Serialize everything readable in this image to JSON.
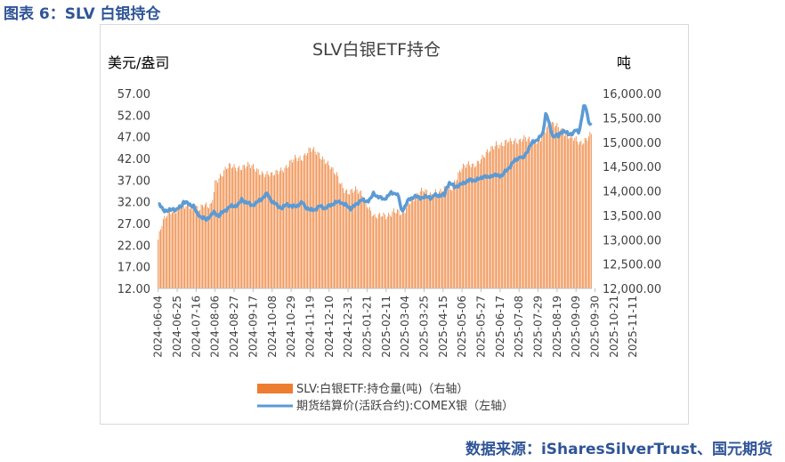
{
  "figure_title": "图表 6：SLV 白银持仓",
  "source": "数据来源：iSharesSilverTrust、国元期货",
  "chart_data": {
    "type": "bar+line",
    "title": "SLV白银ETF持仓",
    "y_left_label": "美元/盎司",
    "y_right_label": "吨",
    "y_left_range": [
      12,
      57
    ],
    "y_right_range": [
      12000,
      16000
    ],
    "y_left_ticks": [
      "57.00",
      "52.00",
      "47.00",
      "42.00",
      "37.00",
      "32.00",
      "27.00",
      "22.00",
      "17.00",
      "12.00"
    ],
    "y_right_ticks": [
      "16,000.00",
      "15,500.00",
      "15,000.00",
      "14,500.00",
      "14,000.00",
      "13,500.00",
      "13,000.00",
      "12,500.00",
      "12,000.00"
    ],
    "x_tick_labels": [
      "2024-06-04",
      "2024-06-25",
      "2024-07-16",
      "2024-08-06",
      "2024-08-27",
      "2024-09-17",
      "2024-10-08",
      "2024-10-29",
      "2024-11-19",
      "2024-12-10",
      "2024-12-31",
      "2025-01-21",
      "2025-02-11",
      "2025-03-04",
      "2025-03-25",
      "2025-04-15",
      "2025-05-06",
      "2025-05-27",
      "2025-06-17",
      "2025-07-08",
      "2025-07-29",
      "2025-08-19",
      "2025-09-09",
      "2025-09-30",
      "2025-10-21",
      "2025-11-11"
    ],
    "holdings_colors": {
      "bar": "#ed7d31",
      "line": "#5b9bd5"
    },
    "series": [
      {
        "name": "SLV:白银ETF:持仓量(吨)（右轴）",
        "axis": "right",
        "type": "bar",
        "points": [
          [
            0,
            13000
          ],
          [
            3,
            13300
          ],
          [
            6,
            13450
          ],
          [
            9,
            13600
          ],
          [
            12,
            13600
          ],
          [
            15,
            13650
          ],
          [
            18,
            13700
          ],
          [
            21,
            13650
          ],
          [
            24,
            13700
          ],
          [
            27,
            13650
          ],
          [
            30,
            13700
          ],
          [
            33,
            13650
          ],
          [
            36,
            13700
          ],
          [
            39,
            13650
          ],
          [
            42,
            13700
          ],
          [
            45,
            14200
          ],
          [
            48,
            14300
          ],
          [
            51,
            14350
          ],
          [
            54,
            14450
          ],
          [
            57,
            14500
          ],
          [
            60,
            14500
          ],
          [
            66,
            14500
          ],
          [
            72,
            14500
          ],
          [
            78,
            14450
          ],
          [
            84,
            14350
          ],
          [
            90,
            14300
          ],
          [
            96,
            14450
          ],
          [
            102,
            14500
          ],
          [
            108,
            14650
          ],
          [
            114,
            14700
          ],
          [
            117,
            14800
          ],
          [
            120,
            14850
          ],
          [
            123,
            14800
          ],
          [
            126,
            14750
          ],
          [
            129,
            14700
          ],
          [
            132,
            14650
          ],
          [
            135,
            14550
          ],
          [
            138,
            14400
          ],
          [
            141,
            14300
          ],
          [
            144,
            14150
          ],
          [
            147,
            14050
          ],
          [
            150,
            14000
          ],
          [
            153,
            14000
          ],
          [
            156,
            14000
          ],
          [
            159,
            13950
          ],
          [
            162,
            13900
          ],
          [
            165,
            13750
          ],
          [
            168,
            13600
          ],
          [
            171,
            13450
          ],
          [
            174,
            13450
          ],
          [
            177,
            13500
          ],
          [
            180,
            13500
          ],
          [
            183,
            13550
          ],
          [
            186,
            13600
          ],
          [
            189,
            13550
          ],
          [
            192,
            13500
          ],
          [
            195,
            13600
          ],
          [
            198,
            13800
          ],
          [
            201,
            13850
          ],
          [
            204,
            13900
          ],
          [
            207,
            13950
          ],
          [
            210,
            14000
          ],
          [
            213,
            13950
          ],
          [
            216,
            13950
          ],
          [
            219,
            14000
          ],
          [
            222,
            13950
          ],
          [
            225,
            14000
          ],
          [
            228,
            14050
          ],
          [
            231,
            14050
          ],
          [
            234,
            14200
          ],
          [
            237,
            14350
          ],
          [
            240,
            14450
          ],
          [
            243,
            14500
          ],
          [
            246,
            14550
          ],
          [
            249,
            14550
          ],
          [
            252,
            14600
          ],
          [
            255,
            14650
          ],
          [
            258,
            14700
          ],
          [
            261,
            14800
          ],
          [
            264,
            14900
          ],
          [
            267,
            15000
          ],
          [
            270,
            14950
          ],
          [
            273,
            14950
          ],
          [
            276,
            15000
          ],
          [
            279,
            15000
          ],
          [
            282,
            15050
          ],
          [
            285,
            15050
          ],
          [
            288,
            15100
          ],
          [
            291,
            15050
          ],
          [
            294,
            15000
          ],
          [
            297,
            15000
          ],
          [
            300,
            15050
          ],
          [
            303,
            15150
          ],
          [
            306,
            15250
          ],
          [
            309,
            15300
          ],
          [
            312,
            15350
          ],
          [
            315,
            15350
          ],
          [
            318,
            15300
          ],
          [
            321,
            15200
          ],
          [
            324,
            15100
          ],
          [
            327,
            15050
          ],
          [
            330,
            15050
          ],
          [
            333,
            15000
          ],
          [
            336,
            15050
          ],
          [
            339,
            15100
          ],
          [
            342,
            15150
          ]
        ]
      },
      {
        "name": "期货结算价(活跃合约):COMEX银（左轴）",
        "axis": "left",
        "type": "line",
        "points": [
          [
            0,
            31.5
          ],
          [
            4,
            30.2
          ],
          [
            8,
            29.8
          ],
          [
            12,
            30.5
          ],
          [
            14,
            30.0
          ],
          [
            18,
            31.0
          ],
          [
            20,
            32.0
          ],
          [
            24,
            31.5
          ],
          [
            28,
            31.0
          ],
          [
            30,
            29.5
          ],
          [
            34,
            28.5
          ],
          [
            38,
            27.8
          ],
          [
            40,
            28.5
          ],
          [
            44,
            29.5
          ],
          [
            48,
            28.8
          ],
          [
            52,
            29.8
          ],
          [
            56,
            30.8
          ],
          [
            60,
            31.0
          ],
          [
            64,
            31.5
          ],
          [
            66,
            32.5
          ],
          [
            70,
            31.8
          ],
          [
            74,
            31.2
          ],
          [
            78,
            31.8
          ],
          [
            82,
            32.8
          ],
          [
            86,
            33.8
          ],
          [
            88,
            33.0
          ],
          [
            90,
            32.0
          ],
          [
            94,
            31.2
          ],
          [
            98,
            30.5
          ],
          [
            102,
            31.5
          ],
          [
            106,
            30.8
          ],
          [
            110,
            31.2
          ],
          [
            114,
            31.8
          ],
          [
            116,
            31.0
          ],
          [
            120,
            30.0
          ],
          [
            124,
            30.3
          ],
          [
            128,
            31.0
          ],
          [
            132,
            30.5
          ],
          [
            136,
            31.2
          ],
          [
            140,
            31.8
          ],
          [
            144,
            32.0
          ],
          [
            148,
            31.2
          ],
          [
            152,
            30.5
          ],
          [
            156,
            31.2
          ],
          [
            160,
            32.5
          ],
          [
            164,
            32.0
          ],
          [
            168,
            32.8
          ],
          [
            170,
            33.8
          ],
          [
            174,
            33.2
          ],
          [
            178,
            32.5
          ],
          [
            182,
            33.5
          ],
          [
            184,
            34.0
          ],
          [
            188,
            34.0
          ],
          [
            190,
            33.0
          ],
          [
            192,
            30.0
          ],
          [
            194,
            30.5
          ],
          [
            198,
            32.5
          ],
          [
            202,
            33.2
          ],
          [
            206,
            33.0
          ],
          [
            210,
            33.0
          ],
          [
            214,
            33.2
          ],
          [
            216,
            32.8
          ],
          [
            218,
            33.5
          ],
          [
            222,
            33.5
          ],
          [
            226,
            33.5
          ],
          [
            228,
            35.5
          ],
          [
            230,
            36.3
          ],
          [
            234,
            35.5
          ],
          [
            238,
            35.8
          ],
          [
            242,
            36.5
          ],
          [
            246,
            37.0
          ],
          [
            250,
            37.0
          ],
          [
            254,
            37.2
          ],
          [
            256,
            37.8
          ],
          [
            258,
            38.0
          ],
          [
            260,
            37.5
          ],
          [
            262,
            37.8
          ],
          [
            264,
            38.2
          ],
          [
            268,
            38.0
          ],
          [
            272,
            38.2
          ],
          [
            276,
            39.5
          ],
          [
            280,
            41.0
          ],
          [
            284,
            42.0
          ],
          [
            286,
            42.5
          ],
          [
            288,
            41.8
          ],
          [
            290,
            43.0
          ],
          [
            294,
            45.0
          ],
          [
            296,
            45.8
          ],
          [
            300,
            46.5
          ],
          [
            302,
            47.0
          ],
          [
            304,
            48.0
          ],
          [
            306,
            52.5
          ],
          [
            308,
            51.0
          ],
          [
            310,
            48.5
          ],
          [
            312,
            47.0
          ],
          [
            314,
            47.5
          ],
          [
            316,
            47.0
          ],
          [
            318,
            48.0
          ],
          [
            320,
            48.5
          ],
          [
            322,
            48.0
          ],
          [
            324,
            47.5
          ],
          [
            328,
            48.0
          ],
          [
            330,
            48.5
          ],
          [
            332,
            48.0
          ],
          [
            334,
            50.5
          ],
          [
            336,
            54.0
          ],
          [
            338,
            53.5
          ],
          [
            340,
            50.5
          ],
          [
            342,
            50.0
          ]
        ]
      }
    ]
  }
}
